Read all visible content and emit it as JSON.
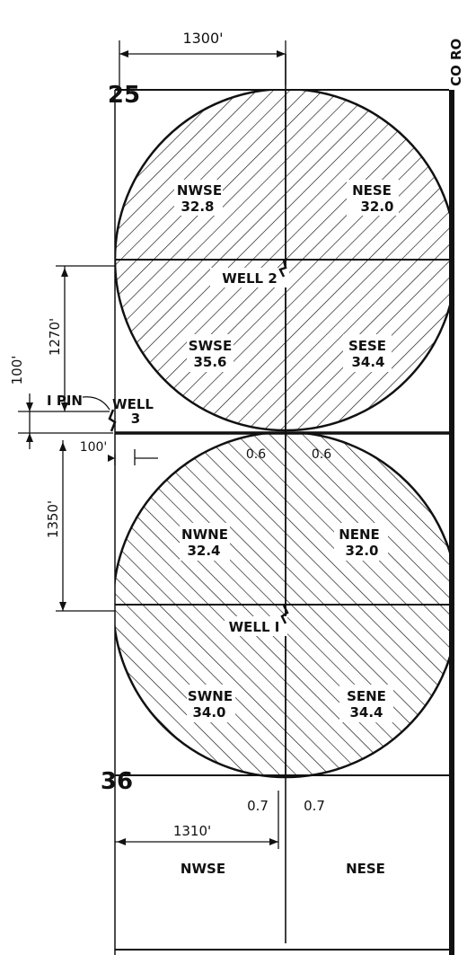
{
  "dimensions": {
    "top_width": "1300'",
    "bottom_width": "1310'",
    "upper_height": "1270'",
    "lower_height": "1350'",
    "offset_vertical": "100'",
    "offset_horizontal": "100'"
  },
  "section_labels": {
    "upper": "25",
    "lower": "36"
  },
  "edge_label": "CO RO",
  "pin_label": "I PIN",
  "wells": {
    "well1": "WELL I",
    "well2": "WELL 2",
    "well3_word": "WELL",
    "well3_num": "3"
  },
  "upper_circle_tracts": [
    {
      "name": "NWSE",
      "acres": "32.8"
    },
    {
      "name": "NESE",
      "acres": "32.0"
    },
    {
      "name": "SWSE",
      "acres": "35.6"
    },
    {
      "name": "SESE",
      "acres": "34.4"
    }
  ],
  "lower_circle_tracts": [
    {
      "name": "NWNE",
      "acres": "32.4"
    },
    {
      "name": "NENE",
      "acres": "32.0"
    },
    {
      "name": "SWNE",
      "acres": "34.0"
    },
    {
      "name": "SENE",
      "acres": "34.4"
    }
  ],
  "small_areas": {
    "mid_left": "0.6",
    "mid_right": "0.6",
    "bottom_left": "0.7",
    "bottom_right": "0.7"
  },
  "bottom_tracts": {
    "left": "NWSE",
    "right": "NESE"
  }
}
